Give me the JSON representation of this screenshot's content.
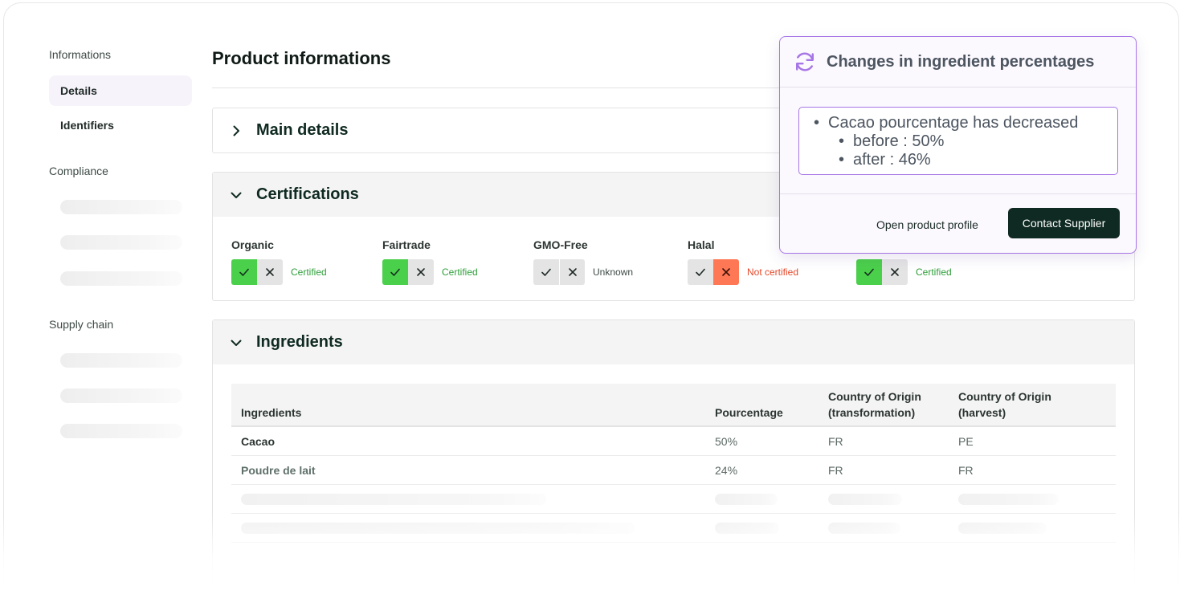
{
  "sidebar": {
    "sections": [
      {
        "label": "Informations"
      },
      {
        "label": "Compliance"
      },
      {
        "label": "Supply chain"
      }
    ],
    "items": [
      {
        "label": "Details",
        "active": true
      },
      {
        "label": "Identifiers",
        "active": false
      }
    ]
  },
  "page": {
    "title": "Product informations"
  },
  "panels": {
    "main_details": {
      "title": "Main details",
      "expanded": false
    },
    "certifications": {
      "title": "Certifications",
      "expanded": true
    },
    "ingredients": {
      "title": "Ingredients",
      "expanded": true
    }
  },
  "certifications": [
    {
      "label": "Organic",
      "status": "Certified",
      "value": "yes"
    },
    {
      "label": "Fairtrade",
      "status": "Certified",
      "value": "yes"
    },
    {
      "label": "GMO-Free",
      "status": "Unknown",
      "value": "unknown"
    },
    {
      "label": "Halal",
      "status": "Not certified",
      "value": "no"
    },
    {
      "label": "",
      "status": "Certified",
      "value": "yes"
    }
  ],
  "ingredients_table": {
    "headers": {
      "name": "Ingredients",
      "percentage": "Pourcentage",
      "origin_transformation_1": "Country of Origin",
      "origin_transformation_2": "(transformation)",
      "origin_harvest_1": "Country of Origin",
      "origin_harvest_2": "(harvest)"
    },
    "rows": [
      {
        "name": "Cacao",
        "percentage": "50%",
        "origin_transformation": "FR",
        "origin_harvest": "PE"
      },
      {
        "name": "Poudre de lait",
        "percentage": "24%",
        "origin_transformation": "FR",
        "origin_harvest": "FR"
      }
    ]
  },
  "popover": {
    "title": "Changes in ingredient percentages",
    "icon": "refresh-icon",
    "change": {
      "headline": "Cacao pourcentage has decreased",
      "before": "before : 50%",
      "after": "after : 46%"
    },
    "actions": {
      "open_profile": "Open product profile",
      "contact_supplier": "Contact Supplier"
    }
  },
  "colors": {
    "brand_dark": "#0f2a22",
    "accent_purple": "#a776e6",
    "certified_green": "#4bd04b",
    "not_certified_red": "#ff7856"
  }
}
